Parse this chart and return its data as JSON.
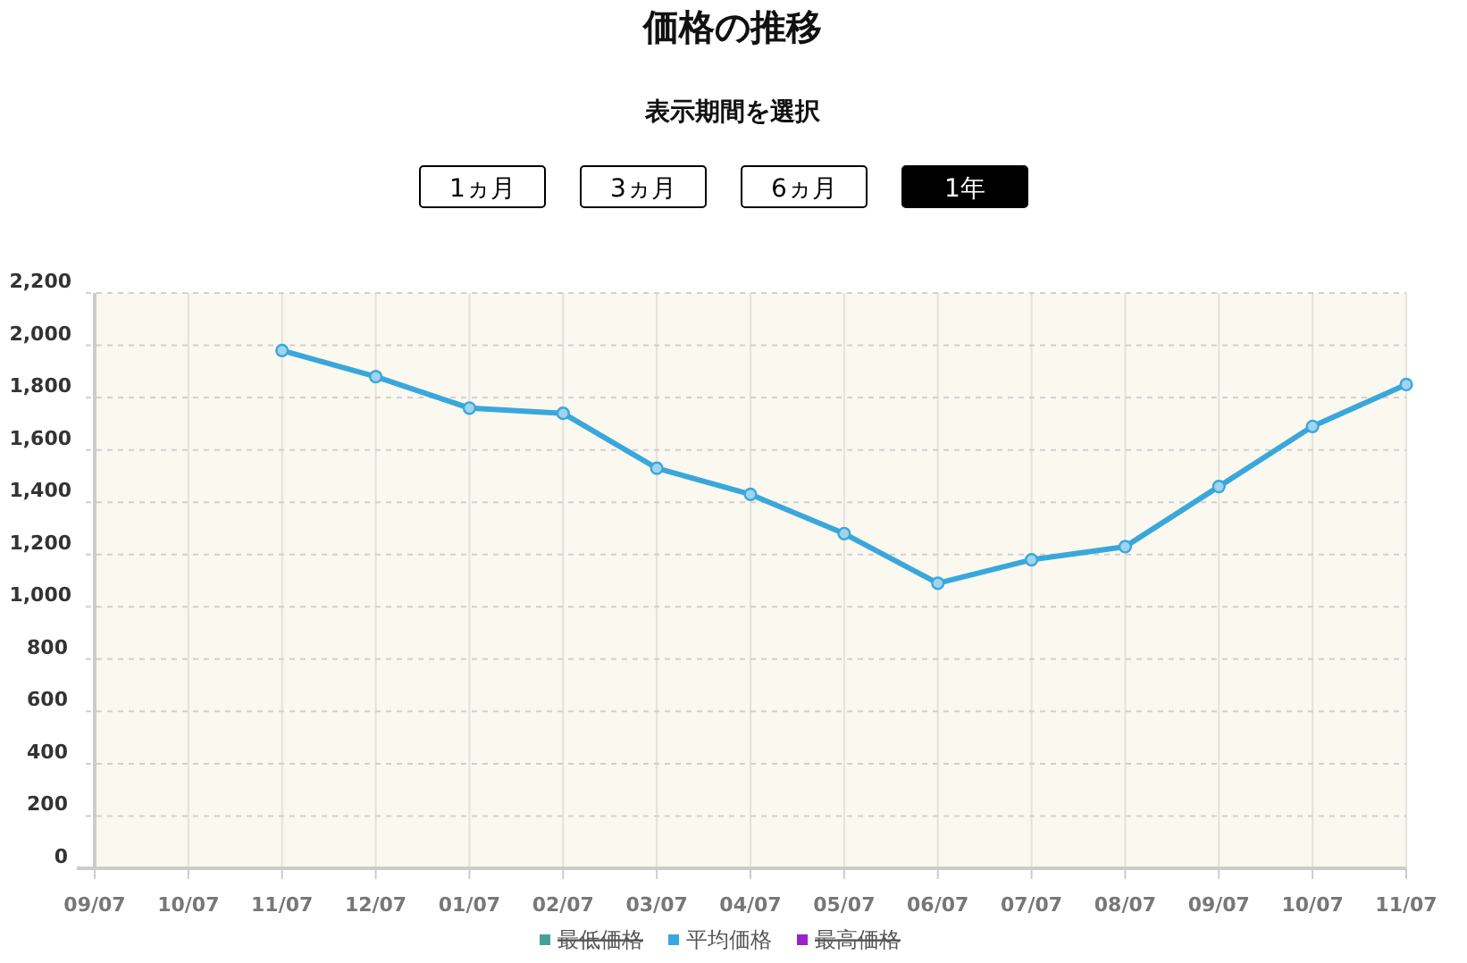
{
  "chart_data": {
    "type": "line",
    "title": "価格の推移",
    "subtitle": "表示期間を選択",
    "annotations": [
      "1ヵ月",
      "3ヵ月",
      "6ヵ月",
      "1年"
    ],
    "categories": [
      "09/07",
      "10/07",
      "11/07",
      "12/07",
      "01/07",
      "02/07",
      "03/07",
      "04/07",
      "05/07",
      "06/07",
      "07/07",
      "08/07",
      "09/07",
      "10/07",
      "11/07"
    ],
    "series": [
      {
        "name": "最低価格",
        "color": "#4a9e9a",
        "values": [
          null,
          null,
          null,
          null,
          null,
          null,
          null,
          null,
          null,
          null,
          null,
          null,
          null,
          null,
          null
        ]
      },
      {
        "name": "平均価格",
        "color": "#3aa7dc",
        "values": [
          null,
          null,
          1980,
          1880,
          1760,
          1740,
          1530,
          1430,
          1280,
          1090,
          1180,
          1230,
          1460,
          1690,
          1850
        ]
      },
      {
        "name": "最高価格",
        "color": "#9b22c8",
        "values": [
          null,
          null,
          null,
          null,
          null,
          null,
          null,
          null,
          null,
          null,
          null,
          null,
          null,
          null,
          null
        ]
      }
    ],
    "ylim": [
      0,
      2200
    ],
    "yticks": [
      0,
      200,
      400,
      600,
      800,
      {
        "value": 1000,
        "label": "1,000"
      },
      {
        "value": 1200,
        "label": "1,200"
      },
      {
        "value": 1400,
        "label": "1,400"
      },
      {
        "value": 1600,
        "label": "1,600"
      },
      {
        "value": 1800,
        "label": "1,800"
      },
      {
        "value": 2000,
        "label": "2,000"
      },
      {
        "value": 2200,
        "label": "2,200"
      }
    ],
    "grid": true,
    "legend": "bottom",
    "marker": "circle",
    "line_style": "solid"
  }
}
